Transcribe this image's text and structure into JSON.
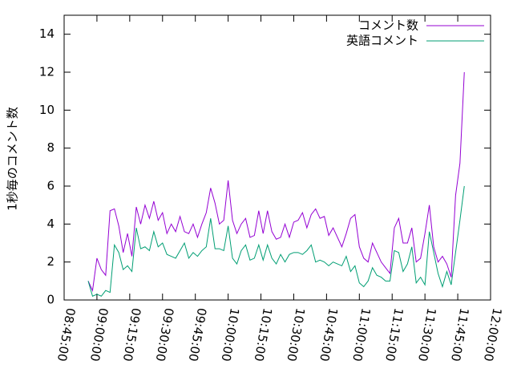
{
  "chart_data": {
    "type": "line",
    "y_label": "1秒毎のコメント数",
    "x": [
      "08:56:00",
      "08:58:00",
      "09:00:00",
      "09:02:00",
      "09:04:00",
      "09:06:00",
      "09:08:00",
      "09:10:00",
      "09:12:00",
      "09:14:00",
      "09:16:00",
      "09:18:00",
      "09:20:00",
      "09:22:00",
      "09:24:00",
      "09:26:00",
      "09:28:00",
      "09:30:00",
      "09:32:00",
      "09:34:00",
      "09:36:00",
      "09:38:00",
      "09:40:00",
      "09:42:00",
      "09:44:00",
      "09:46:00",
      "09:48:00",
      "09:50:00",
      "09:52:00",
      "09:54:00",
      "09:56:00",
      "09:58:00",
      "10:00:00",
      "10:02:00",
      "10:04:00",
      "10:06:00",
      "10:08:00",
      "10:10:00",
      "10:12:00",
      "10:14:00",
      "10:16:00",
      "10:18:00",
      "10:20:00",
      "10:22:00",
      "10:24:00",
      "10:26:00",
      "10:28:00",
      "10:30:00",
      "10:32:00",
      "10:34:00",
      "10:36:00",
      "10:38:00",
      "10:40:00",
      "10:42:00",
      "10:44:00",
      "10:46:00",
      "10:48:00",
      "10:50:00",
      "10:52:00",
      "10:54:00",
      "10:56:00",
      "10:58:00",
      "11:00:00",
      "11:02:00",
      "11:04:00",
      "11:06:00",
      "11:08:00",
      "11:10:00",
      "11:12:00",
      "11:14:00",
      "11:16:00",
      "11:18:00",
      "11:20:00",
      "11:22:00",
      "11:24:00",
      "11:26:00",
      "11:28:00",
      "11:30:00",
      "11:32:00",
      "11:34:00",
      "11:36:00",
      "11:38:00",
      "11:40:00",
      "11:42:00",
      "11:44:00",
      "11:46:00",
      "11:48:00"
    ],
    "series": [
      {
        "name": "コメント数",
        "color": "#9400d3",
        "values": [
          1.0,
          0.5,
          2.2,
          1.6,
          1.3,
          4.7,
          4.8,
          3.9,
          2.5,
          3.5,
          2.3,
          4.9,
          4.0,
          5.0,
          4.3,
          5.2,
          4.2,
          4.6,
          3.5,
          4.0,
          3.6,
          4.4,
          3.6,
          3.5,
          4.0,
          3.3,
          4.0,
          4.6,
          5.9,
          5.1,
          4.0,
          4.2,
          6.3,
          4.2,
          3.5,
          4.0,
          4.3,
          3.3,
          3.4,
          4.7,
          3.5,
          4.7,
          3.6,
          3.2,
          3.3,
          4.0,
          3.3,
          4.1,
          4.2,
          4.6,
          3.8,
          4.5,
          4.8,
          4.3,
          4.4,
          3.4,
          3.8,
          3.3,
          2.8,
          3.5,
          4.3,
          4.5,
          2.8,
          2.2,
          2.0,
          3.0,
          2.5,
          2.0,
          1.7,
          1.4,
          3.8,
          4.3,
          3.0,
          3.0,
          3.8,
          2.0,
          2.2,
          3.5,
          5.0,
          2.8,
          2.0,
          2.3,
          1.9,
          1.2,
          5.5,
          7.2,
          12.0
        ]
      },
      {
        "name": "英語コメント",
        "color": "#009e73",
        "values": [
          1.0,
          0.2,
          0.3,
          0.2,
          0.5,
          0.4,
          2.9,
          2.5,
          1.6,
          1.8,
          1.5,
          3.8,
          2.7,
          2.8,
          2.6,
          3.6,
          2.8,
          3.0,
          2.4,
          2.3,
          2.2,
          2.6,
          3.0,
          2.2,
          2.5,
          2.3,
          2.6,
          2.8,
          4.3,
          2.7,
          2.7,
          2.6,
          3.9,
          2.2,
          1.9,
          2.6,
          2.9,
          2.1,
          2.2,
          2.9,
          2.1,
          2.9,
          2.2,
          1.9,
          2.4,
          2.0,
          2.4,
          2.5,
          2.5,
          2.4,
          2.6,
          2.9,
          2.0,
          2.1,
          2.0,
          1.8,
          2.0,
          1.9,
          1.8,
          2.3,
          1.5,
          1.8,
          0.9,
          0.7,
          1.0,
          1.7,
          1.3,
          1.2,
          1.0,
          1.0,
          2.6,
          2.5,
          1.5,
          1.9,
          2.8,
          0.9,
          1.2,
          0.8,
          3.6,
          2.5,
          1.4,
          0.7,
          1.5,
          0.8,
          2.5,
          4.2,
          6.0
        ]
      }
    ],
    "xlim": [
      "08:45:00",
      "12:00:00"
    ],
    "xticks": [
      "08:45:00",
      "09:00:00",
      "09:15:00",
      "09:30:00",
      "09:45:00",
      "10:00:00",
      "10:15:00",
      "10:30:00",
      "10:45:00",
      "11:00:00",
      "11:15:00",
      "11:30:00",
      "11:45:00",
      "12:00:00"
    ],
    "ylim": [
      0,
      15
    ],
    "yticks": [
      0,
      2,
      4,
      6,
      8,
      10,
      12,
      14
    ],
    "legend": "top right"
  }
}
